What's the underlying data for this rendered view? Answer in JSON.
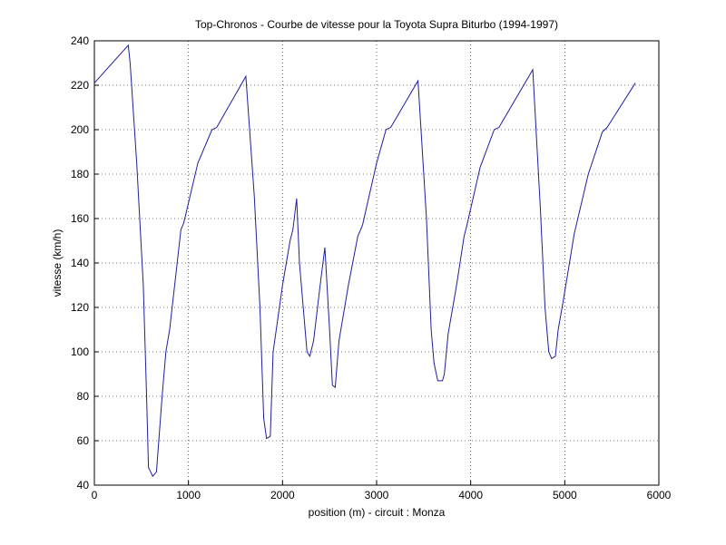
{
  "chart_data": {
    "type": "line",
    "title": "Top-Chronos - Courbe de vitesse pour la Toyota Supra Biturbo (1994-1997)",
    "x_label": "position (m) - circuit : Monza",
    "y_label": "vitesse (km/h)",
    "x": [
      0,
      360,
      380,
      450,
      520,
      555,
      575,
      620,
      660,
      720,
      760,
      800,
      920,
      950,
      1100,
      1250,
      1300,
      1610,
      1700,
      1760,
      1800,
      1830,
      1870,
      1900,
      2000,
      2080,
      2110,
      2150,
      2180,
      2260,
      2290,
      2330,
      2400,
      2450,
      2500,
      2530,
      2560,
      2600,
      2700,
      2800,
      2850,
      3000,
      3100,
      3150,
      3440,
      3530,
      3580,
      3610,
      3650,
      3700,
      3720,
      3760,
      3850,
      3930,
      3960,
      4100,
      4250,
      4300,
      4660,
      4740,
      4790,
      4830,
      4860,
      4900,
      4930,
      4980,
      5050,
      5100,
      5250,
      5400,
      5450,
      5750
    ],
    "series": [
      {
        "name": "vitesse",
        "color": "#1f1fa0",
        "values": [
          221,
          238,
          230,
          185,
          130,
          80,
          48,
          44,
          46,
          80,
          100,
          110,
          155,
          158,
          185,
          200,
          201,
          224,
          170,
          120,
          70,
          61,
          62,
          100,
          130,
          150,
          155,
          169,
          140,
          100,
          98,
          105,
          130,
          147,
          110,
          85,
          84,
          105,
          130,
          152,
          157,
          185,
          200,
          201,
          222,
          160,
          110,
          95,
          87,
          87,
          90,
          108,
          130,
          152,
          157,
          183,
          200,
          201,
          227,
          165,
          120,
          100,
          97,
          98,
          110,
          122,
          140,
          153,
          180,
          199,
          201,
          221
        ]
      }
    ],
    "xlim": [
      0,
      6000
    ],
    "xticks": [
      0,
      1000,
      2000,
      3000,
      4000,
      5000,
      6000
    ],
    "ylim": [
      40,
      240
    ],
    "yticks": [
      40,
      60,
      80,
      100,
      120,
      140,
      160,
      180,
      200,
      220,
      240
    ],
    "grid": true
  }
}
